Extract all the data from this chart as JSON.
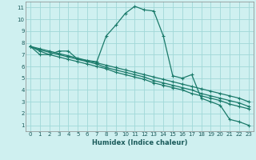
{
  "xlabel": "Humidex (Indice chaleur)",
  "bg_color": "#cff0f0",
  "grid_color": "#a0d8d8",
  "line_color": "#1a7a6a",
  "xlim": [
    -0.5,
    23.5
  ],
  "ylim": [
    0.5,
    11.5
  ],
  "xticks": [
    0,
    1,
    2,
    3,
    4,
    5,
    6,
    7,
    8,
    9,
    10,
    11,
    12,
    13,
    14,
    15,
    16,
    17,
    18,
    19,
    20,
    21,
    22,
    23
  ],
  "yticks": [
    1,
    2,
    3,
    4,
    5,
    6,
    7,
    8,
    9,
    10,
    11
  ],
  "series1_x": [
    0,
    1,
    2,
    3,
    4,
    5,
    6,
    7,
    8,
    9,
    10,
    11,
    12,
    13,
    14,
    15,
    16,
    17,
    18,
    19,
    20,
    21,
    22,
    23
  ],
  "series1_y": [
    7.7,
    7.0,
    7.0,
    7.3,
    7.3,
    6.6,
    6.5,
    6.4,
    8.6,
    9.5,
    10.5,
    11.1,
    10.8,
    10.7,
    8.6,
    5.2,
    5.0,
    5.3,
    3.3,
    3.0,
    2.7,
    1.5,
    1.3,
    1.0
  ],
  "series2_x": [
    0,
    1,
    2,
    3,
    4,
    5,
    6,
    7,
    8,
    9,
    10,
    11,
    12,
    13,
    14,
    15,
    16,
    17,
    18,
    19,
    20,
    21,
    22,
    23
  ],
  "series2_y": [
    7.7,
    7.3,
    7.0,
    6.8,
    6.6,
    6.4,
    6.2,
    6.0,
    5.8,
    5.5,
    5.3,
    5.1,
    4.9,
    4.6,
    4.4,
    4.2,
    4.0,
    3.7,
    3.5,
    3.3,
    3.1,
    2.8,
    2.6,
    2.4
  ],
  "series3_x": [
    0,
    1,
    2,
    3,
    4,
    5,
    6,
    7,
    8,
    9,
    10,
    11,
    12,
    13,
    14,
    15,
    16,
    17,
    18,
    19,
    20,
    21,
    22,
    23
  ],
  "series3_y": [
    7.7,
    7.4,
    7.2,
    7.0,
    6.8,
    6.6,
    6.4,
    6.2,
    5.9,
    5.7,
    5.5,
    5.3,
    5.1,
    4.8,
    4.6,
    4.4,
    4.2,
    4.0,
    3.7,
    3.5,
    3.3,
    3.1,
    2.9,
    2.6
  ],
  "series4_x": [
    0,
    1,
    2,
    3,
    4,
    5,
    6,
    7,
    8,
    9,
    10,
    11,
    12,
    13,
    14,
    15,
    16,
    17,
    18,
    19,
    20,
    21,
    22,
    23
  ],
  "series4_y": [
    7.7,
    7.5,
    7.3,
    7.1,
    6.9,
    6.7,
    6.5,
    6.3,
    6.1,
    5.9,
    5.7,
    5.5,
    5.3,
    5.1,
    4.9,
    4.7,
    4.5,
    4.3,
    4.1,
    3.9,
    3.7,
    3.5,
    3.3,
    3.0
  ]
}
